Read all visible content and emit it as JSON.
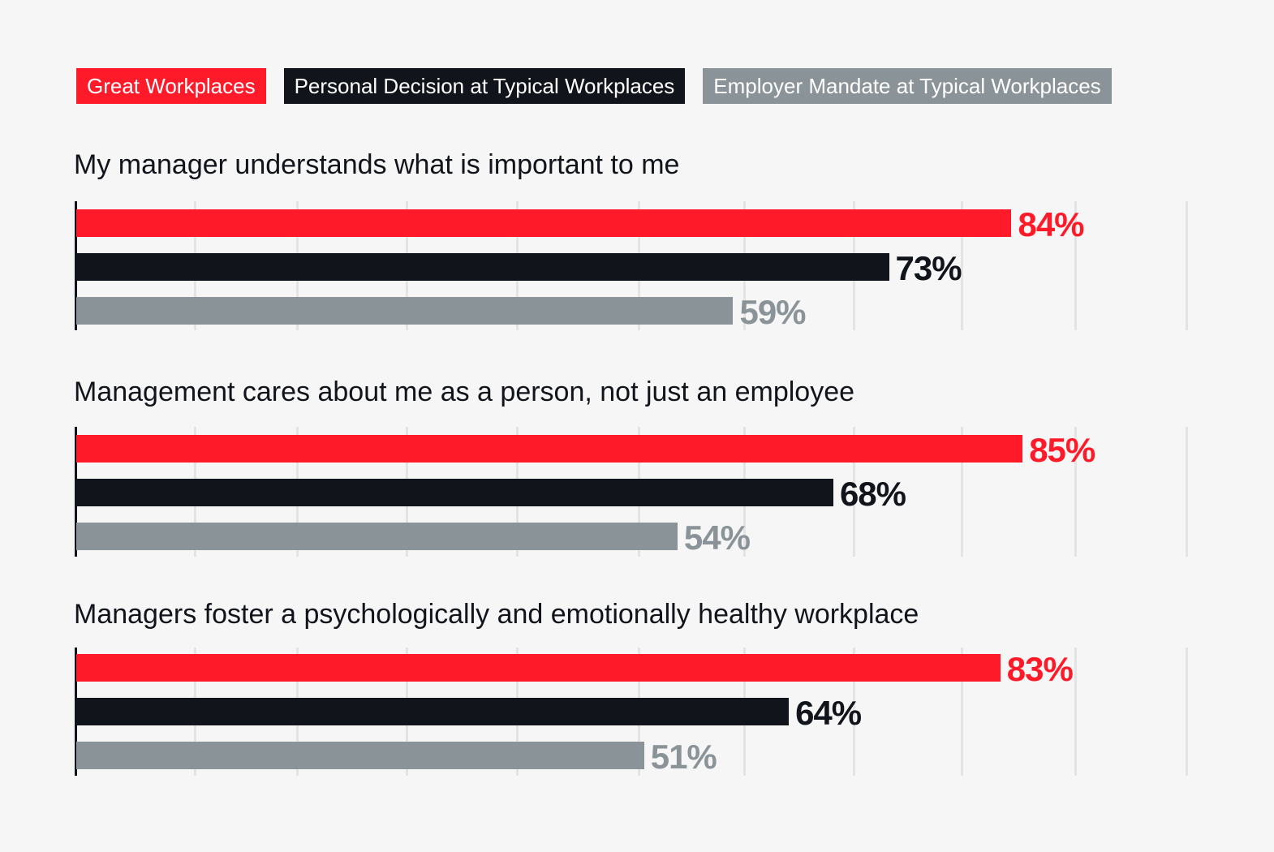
{
  "chart_data": {
    "type": "bar",
    "orientation": "horizontal",
    "colors": {
      "Great Workplaces": "#ff1a2a",
      "Personal Decision at Typical Workplaces": "#12141c",
      "Employer Mandate at Typical Workplaces": "#8a9398"
    },
    "legend": [
      "Great Workplaces",
      "Personal Decision at Typical Workplaces",
      "Employer Mandate at Typical Workplaces"
    ],
    "legend_placement": "top-left",
    "xlim": [
      0,
      100
    ],
    "grid": true,
    "panels": [
      {
        "title": "My manager understands what is important to me",
        "values": [
          84,
          73,
          59
        ],
        "labels": [
          "84%",
          "73%",
          "59%"
        ]
      },
      {
        "title": "Management cares about me as a person, not just an employee",
        "values": [
          85,
          68,
          54
        ],
        "labels": [
          "85%",
          "68%",
          "54%"
        ]
      },
      {
        "title": "Managers foster a psychologically and emotionally healthy workplace",
        "values": [
          83,
          64,
          51
        ],
        "labels": [
          "83%",
          "64%",
          "51%"
        ]
      }
    ]
  }
}
